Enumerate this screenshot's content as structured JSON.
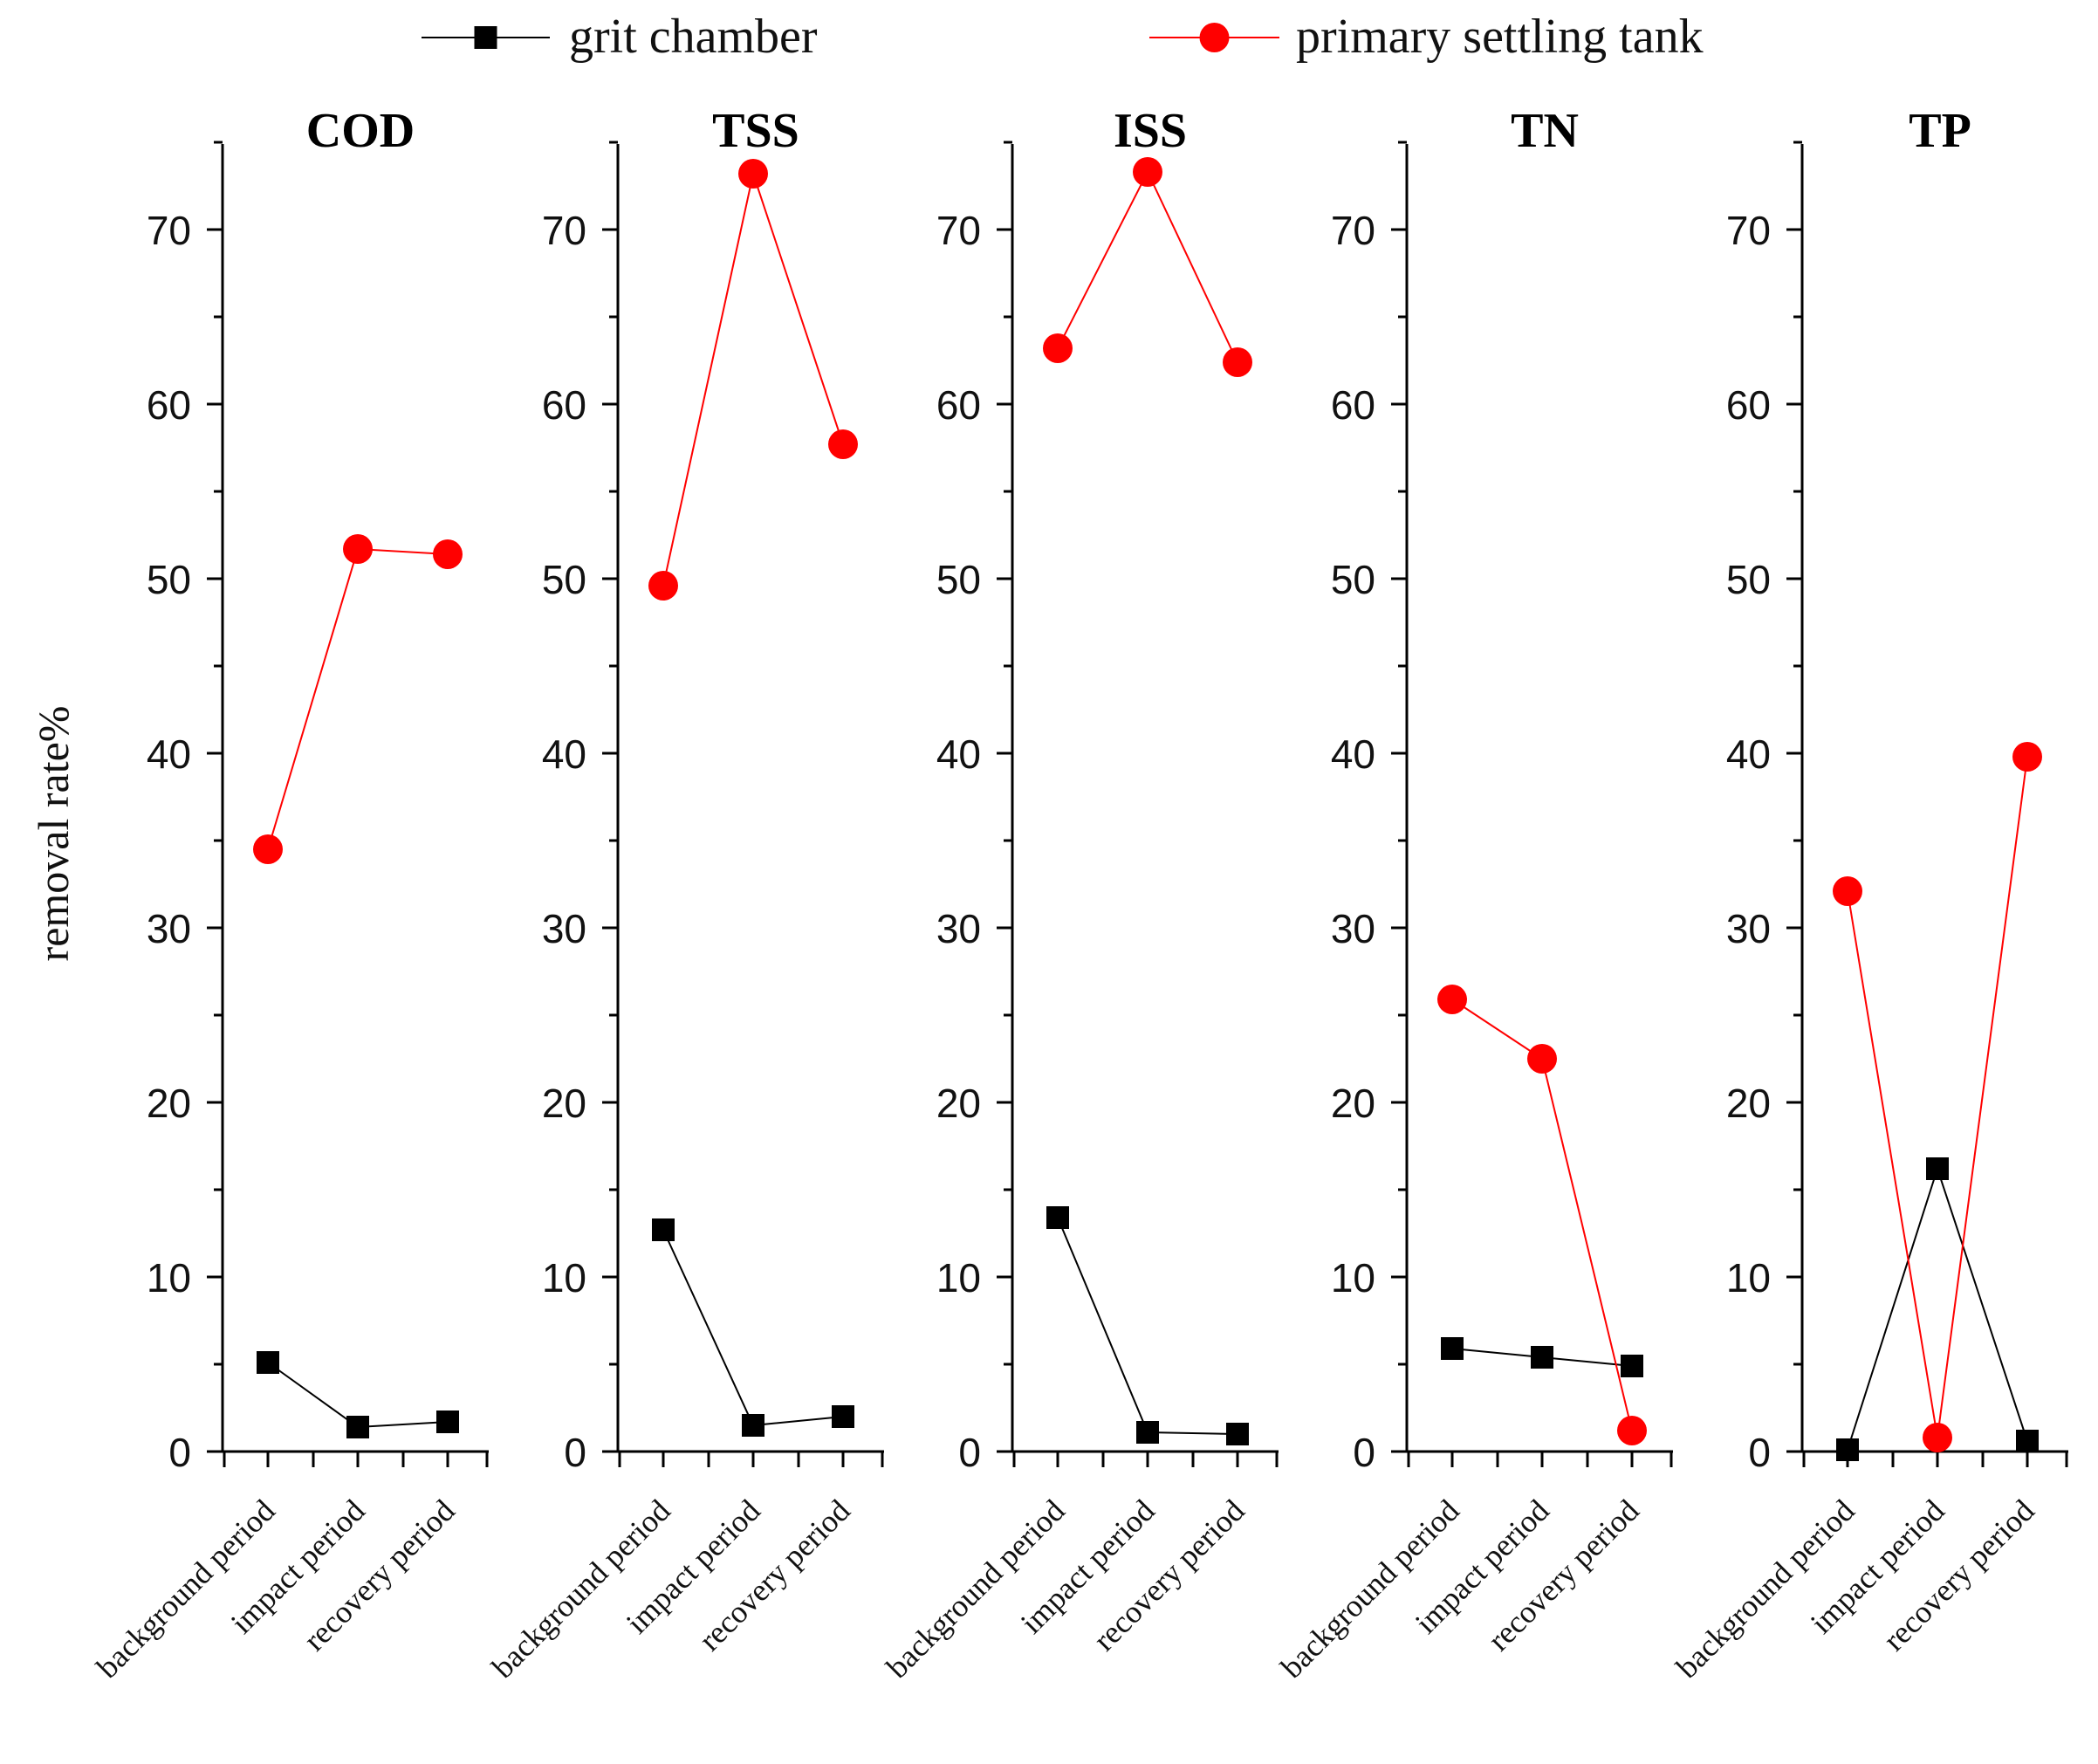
{
  "chart_data": {
    "type": "line",
    "ylabel": "removal rate%",
    "ylim": [
      0,
      75
    ],
    "yticks": [
      0,
      10,
      20,
      30,
      40,
      50,
      60,
      70
    ],
    "categories": [
      "background period",
      "impact period",
      "recovery period"
    ],
    "legend": {
      "placement": "top-center",
      "entries": [
        {
          "name": "grit chamber",
          "color": "#000000",
          "marker": "square"
        },
        {
          "name": "primary settling tank",
          "color": "#ff0000",
          "marker": "circle"
        }
      ]
    },
    "panels": [
      {
        "title": "COD",
        "series": [
          {
            "name": "grit chamber",
            "values": [
              5.1,
              1.4,
              1.7
            ]
          },
          {
            "name": "primary settling tank",
            "values": [
              34.5,
              51.7,
              51.4
            ]
          }
        ]
      },
      {
        "title": "TSS",
        "series": [
          {
            "name": "grit chamber",
            "values": [
              12.7,
              1.5,
              2.0
            ]
          },
          {
            "name": "primary settling tank",
            "values": [
              49.6,
              73.2,
              57.7
            ]
          }
        ]
      },
      {
        "title": "ISS",
        "series": [
          {
            "name": "grit chamber",
            "values": [
              13.4,
              1.1,
              1.0
            ]
          },
          {
            "name": "primary settling tank",
            "values": [
              63.2,
              73.3,
              62.4
            ]
          }
        ]
      },
      {
        "title": "TN",
        "series": [
          {
            "name": "grit chamber",
            "values": [
              5.9,
              5.4,
              4.9
            ]
          },
          {
            "name": "primary settling tank",
            "values": [
              25.9,
              22.5,
              1.2
            ]
          }
        ]
      },
      {
        "title": "TP",
        "series": [
          {
            "name": "grit chamber",
            "values": [
              0.1,
              16.2,
              0.6
            ]
          },
          {
            "name": "primary settling tank",
            "values": [
              32.1,
              0.8,
              39.8
            ]
          }
        ]
      }
    ]
  }
}
